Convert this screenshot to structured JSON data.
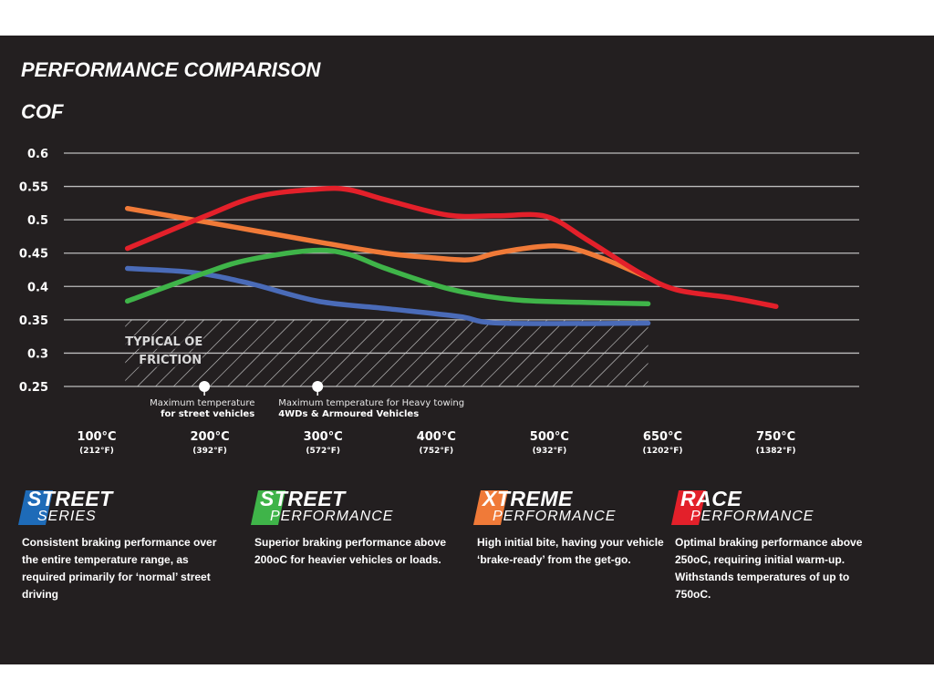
{
  "header": {
    "title": "PERFORMANCE COMPARISON",
    "subtitle": "COF"
  },
  "chart_data": {
    "type": "line",
    "title": "PERFORMANCE COMPARISON",
    "ylabel": "COF",
    "xlabel": "",
    "ylim": [
      0.25,
      0.6
    ],
    "yticks": [
      "0.6",
      "0.55",
      "0.5",
      "0.45",
      "0.4",
      "0.35",
      "0.3",
      "0.25"
    ],
    "ytick_values": [
      0.6,
      0.55,
      0.5,
      0.45,
      0.4,
      0.35,
      0.3,
      0.25
    ],
    "grid": true,
    "x_note": "x values are tick-position indices: 0=100°C, 1=200°C, 2=300°C, 3=400°C, 4=500°C, 5=650°C, 6=750°C",
    "xlim": [
      -0.25,
      6.8
    ],
    "xticks": [
      {
        "pos": 0,
        "c": "100°C",
        "f": "(212°F)"
      },
      {
        "pos": 1,
        "c": "200°C",
        "f": "(392°F)"
      },
      {
        "pos": 2,
        "c": "300°C",
        "f": "(572°F)"
      },
      {
        "pos": 3,
        "c": "400°C",
        "f": "(752°F)"
      },
      {
        "pos": 4,
        "c": "500°C",
        "f": "(932°F)"
      },
      {
        "pos": 5,
        "c": "650°C",
        "f": "(1202°F)"
      },
      {
        "pos": 6,
        "c": "750°C",
        "f": "(1382°F)"
      }
    ],
    "series": [
      {
        "name": "RACE PERFORMANCE",
        "color": "#e3202a",
        "x": [
          0.32,
          1.0,
          1.47,
          2.0,
          2.28,
          2.6,
          3.15,
          3.58,
          4.02,
          4.38,
          4.85,
          5.17,
          5.65,
          6.05
        ],
        "y": [
          0.457,
          0.505,
          0.535,
          0.546,
          0.545,
          0.53,
          0.507,
          0.506,
          0.505,
          0.47,
          0.42,
          0.395,
          0.383,
          0.37
        ]
      },
      {
        "name": "XTREME PERFORMANCE",
        "color": "#f07a38",
        "x": [
          0.32,
          1.0,
          2.0,
          2.6,
          3.02,
          3.34,
          3.58,
          3.98,
          4.23,
          4.55,
          4.92
        ],
        "y": [
          0.517,
          0.497,
          0.467,
          0.45,
          0.443,
          0.44,
          0.45,
          0.46,
          0.458,
          0.44,
          0.413
        ]
      },
      {
        "name": "STREET PERFORMANCE",
        "color": "#3fb449",
        "x": [
          0.32,
          1.0,
          1.39,
          1.96,
          2.28,
          2.6,
          3.17,
          3.74,
          4.38,
          4.92
        ],
        "y": [
          0.378,
          0.42,
          0.44,
          0.454,
          0.448,
          0.427,
          0.396,
          0.38,
          0.376,
          0.374
        ]
      },
      {
        "name": "STREET SERIES",
        "color": "#4a6bb8",
        "x": [
          0.32,
          0.9,
          1.39,
          2.0,
          2.6,
          3.25,
          3.62,
          4.92
        ],
        "y": [
          0.427,
          0.421,
          0.405,
          0.378,
          0.367,
          0.355,
          0.345,
          0.345
        ]
      }
    ],
    "shaded_region": {
      "label_line1": "TYPICAL OE",
      "label_line2": "FRICTION",
      "x_range": [
        0.3,
        4.92
      ],
      "y_range": [
        0.25,
        0.35
      ]
    },
    "annotations": [
      {
        "pos": 1.0,
        "line1": "Maximum temperature",
        "line2": "for street vehicles"
      },
      {
        "pos": 2.0,
        "line1": "Maximum temperature for Heavy towing",
        "line2": "4WDs & Armoured Vehicles"
      }
    ]
  },
  "legend": [
    {
      "big": "STREET",
      "small": "SERIES",
      "color": "#1e6bb8",
      "text": "Consistent braking performance over the entire temperature range, as required primarily for ‘normal’ street driving"
    },
    {
      "big": "STREET",
      "small": "PERFORMANCE",
      "color": "#3fb449",
      "text": "Superior braking performance above 200oC for heavier vehicles or loads."
    },
    {
      "big": "XTREME",
      "small": "PERFORMANCE",
      "color": "#f07a38",
      "text": "High initial bite, having your vehicle ‘brake-ready’ from the get-go."
    },
    {
      "big": "RACE",
      "small": "PERFORMANCE",
      "color": "#e3202a",
      "text": "Optimal braking performance above 250oC, requiring initial warm-up. Withstands temperatures of up to 750oC."
    }
  ]
}
